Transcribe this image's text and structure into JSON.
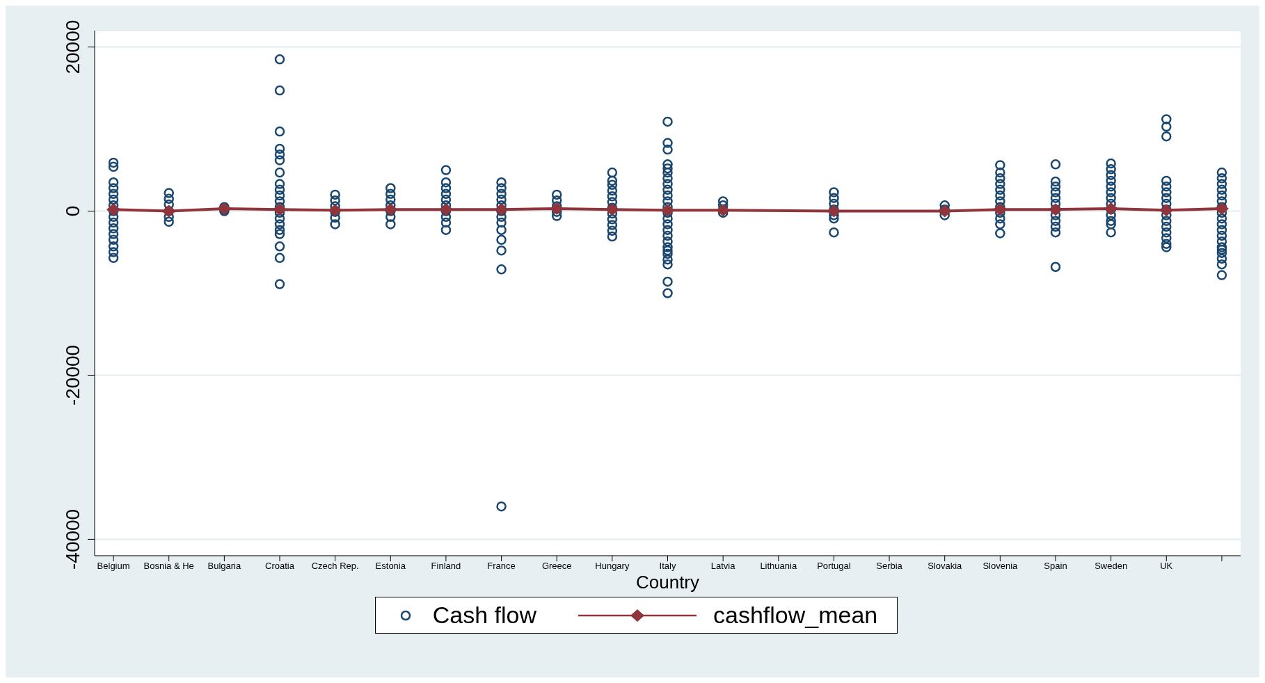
{
  "chart_data": {
    "type": "scatter",
    "xlabel": "Country",
    "categories": [
      "Belgium",
      "Bosnia & He",
      "Bulgaria",
      "Croatia",
      "Czech Rep.",
      "Estonia",
      "Finland",
      "France",
      "Greece",
      "Hungary",
      "Italy",
      "Latvia",
      "Lithuania",
      "Portugal",
      "Serbia",
      "Slovakia",
      "Slovenia",
      "Spain",
      "Sweden",
      "UK",
      null
    ],
    "ylim": [
      -42000,
      22000
    ],
    "yticks": [
      -40000,
      -20000,
      0,
      20000
    ],
    "grid": "y",
    "legend": "bottom",
    "series": [
      {
        "name": "Cash flow",
        "color": "#1a476f",
        "marker": "circle",
        "x": [
          "Belgium",
          "Belgium",
          "Belgium",
          "Belgium",
          "Belgium",
          "Belgium",
          "Belgium",
          "Belgium",
          "Belgium",
          "Belgium",
          "Belgium",
          "Belgium",
          "Belgium",
          "Belgium",
          "Belgium",
          "Belgium",
          "Bosnia & He",
          "Bosnia & He",
          "Bosnia & He",
          "Bosnia & He",
          "Bosnia & He",
          "Bosnia & He",
          "Bulgaria",
          "Bulgaria",
          "Bulgaria",
          "Croatia",
          "Croatia",
          "Croatia",
          "Croatia",
          "Croatia",
          "Croatia",
          "Croatia",
          "Croatia",
          "Croatia",
          "Croatia",
          "Croatia",
          "Croatia",
          "Croatia",
          "Croatia",
          "Croatia",
          "Croatia",
          "Croatia",
          "Croatia",
          "Croatia",
          "Croatia",
          "Czech Rep.",
          "Czech Rep.",
          "Czech Rep.",
          "Czech Rep.",
          "Czech Rep.",
          "Czech Rep.",
          "Estonia",
          "Estonia",
          "Estonia",
          "Estonia",
          "Estonia",
          "Estonia",
          "Estonia",
          "Finland",
          "Finland",
          "Finland",
          "Finland",
          "Finland",
          "Finland",
          "Finland",
          "Finland",
          "Finland",
          "Finland",
          "France",
          "France",
          "France",
          "France",
          "France",
          "France",
          "France",
          "France",
          "France",
          "France",
          "France",
          "France",
          "France",
          "Greece",
          "Greece",
          "Greece",
          "Greece",
          "Greece",
          "Hungary",
          "Hungary",
          "Hungary",
          "Hungary",
          "Hungary",
          "Hungary",
          "Hungary",
          "Hungary",
          "Hungary",
          "Hungary",
          "Hungary",
          "Hungary",
          "Italy",
          "Italy",
          "Italy",
          "Italy",
          "Italy",
          "Italy",
          "Italy",
          "Italy",
          "Italy",
          "Italy",
          "Italy",
          "Italy",
          "Italy",
          "Italy",
          "Italy",
          "Italy",
          "Italy",
          "Italy",
          "Italy",
          "Italy",
          "Italy",
          "Italy",
          "Italy",
          "Italy",
          "Italy",
          "Latvia",
          "Latvia",
          "Latvia",
          "Latvia",
          "Portugal",
          "Portugal",
          "Portugal",
          "Portugal",
          "Portugal",
          "Portugal",
          "Portugal",
          "Slovakia",
          "Slovakia",
          "Slovakia",
          "Slovenia",
          "Slovenia",
          "Slovenia",
          "Slovenia",
          "Slovenia",
          "Slovenia",
          "Slovenia",
          "Slovenia",
          "Slovenia",
          "Slovenia",
          "Slovenia",
          "Slovenia",
          "Spain",
          "Spain",
          "Spain",
          "Spain",
          "Spain",
          "Spain",
          "Spain",
          "Spain",
          "Spain",
          "Spain",
          "Spain",
          "Spain",
          "Sweden",
          "Sweden",
          "Sweden",
          "Sweden",
          "Sweden",
          "Sweden",
          "Sweden",
          "Sweden",
          "Sweden",
          "Sweden",
          "Sweden",
          "Sweden",
          "Sweden",
          "UK",
          "UK",
          "UK",
          "UK",
          "UK",
          "UK",
          "UK",
          "UK",
          "UK",
          "UK",
          "UK",
          "UK",
          "UK",
          "UK",
          "UK",
          "UK",
          null,
          null,
          null,
          null,
          null,
          null,
          null,
          null,
          null,
          null,
          null,
          null,
          null,
          null,
          null,
          null,
          null,
          null,
          null
        ],
        "values": [
          5900,
          5400,
          3500,
          2800,
          2100,
          1400,
          700,
          0,
          -700,
          -1400,
          -2100,
          -2800,
          -3500,
          -4300,
          -5000,
          -5700,
          2200,
          1500,
          800,
          0,
          -700,
          -1300,
          500,
          200,
          0,
          18500,
          14700,
          9700,
          7600,
          6900,
          6200,
          4700,
          3300,
          2600,
          1900,
          1200,
          500,
          -200,
          -900,
          -1600,
          -2300,
          -2800,
          -4300,
          -5700,
          -8900,
          2000,
          1300,
          600,
          -100,
          -800,
          -1600,
          2800,
          2100,
          1400,
          700,
          0,
          -700,
          -1600,
          5000,
          3500,
          2800,
          2100,
          1400,
          700,
          0,
          -700,
          -1400,
          -2300,
          3500,
          2800,
          2100,
          1400,
          700,
          0,
          -700,
          -1400,
          -2300,
          -3500,
          -4800,
          -7100,
          -36000,
          2000,
          1300,
          600,
          -100,
          -600,
          4700,
          3700,
          3200,
          2500,
          1800,
          1100,
          400,
          -300,
          -1000,
          -1700,
          -2400,
          -3100,
          10900,
          8300,
          7500,
          5700,
          5200,
          4700,
          4000,
          3300,
          2600,
          1900,
          1200,
          500,
          -200,
          -900,
          -1600,
          -2300,
          -3000,
          -3700,
          -4400,
          -4800,
          -5200,
          -5900,
          -6500,
          -8600,
          -10000,
          1200,
          700,
          200,
          -200,
          2300,
          1600,
          900,
          200,
          -500,
          -900,
          -2600,
          700,
          200,
          -500,
          5600,
          4700,
          4000,
          3300,
          2600,
          1900,
          1200,
          500,
          -200,
          -900,
          -1600,
          -2700,
          5700,
          3600,
          3000,
          2300,
          1600,
          900,
          200,
          -500,
          -1200,
          -1900,
          -2600,
          -6800,
          5800,
          5100,
          4400,
          3700,
          3000,
          2300,
          1600,
          900,
          200,
          -500,
          -1200,
          -1600,
          -2600,
          11200,
          10300,
          9100,
          3700,
          3000,
          2300,
          1600,
          900,
          200,
          -500,
          -1200,
          -1900,
          -2600,
          -3300,
          -4000,
          -4400,
          4700,
          4000,
          3300,
          2600,
          1900,
          1200,
          500,
          -200,
          -900,
          -1600,
          -2300,
          -3000,
          -3700,
          -4400,
          -4700,
          -5100,
          -5800,
          -6500,
          -7800
        ]
      },
      {
        "name": "cashflow_mean",
        "type": "line",
        "color": "#90353b",
        "marker": "diamond",
        "line_style": "solid",
        "values": [
          200,
          0,
          300,
          200,
          100,
          200,
          200,
          200,
          300,
          200,
          100,
          100,
          null,
          0,
          null,
          0,
          200,
          200,
          300,
          100,
          300
        ]
      }
    ]
  }
}
